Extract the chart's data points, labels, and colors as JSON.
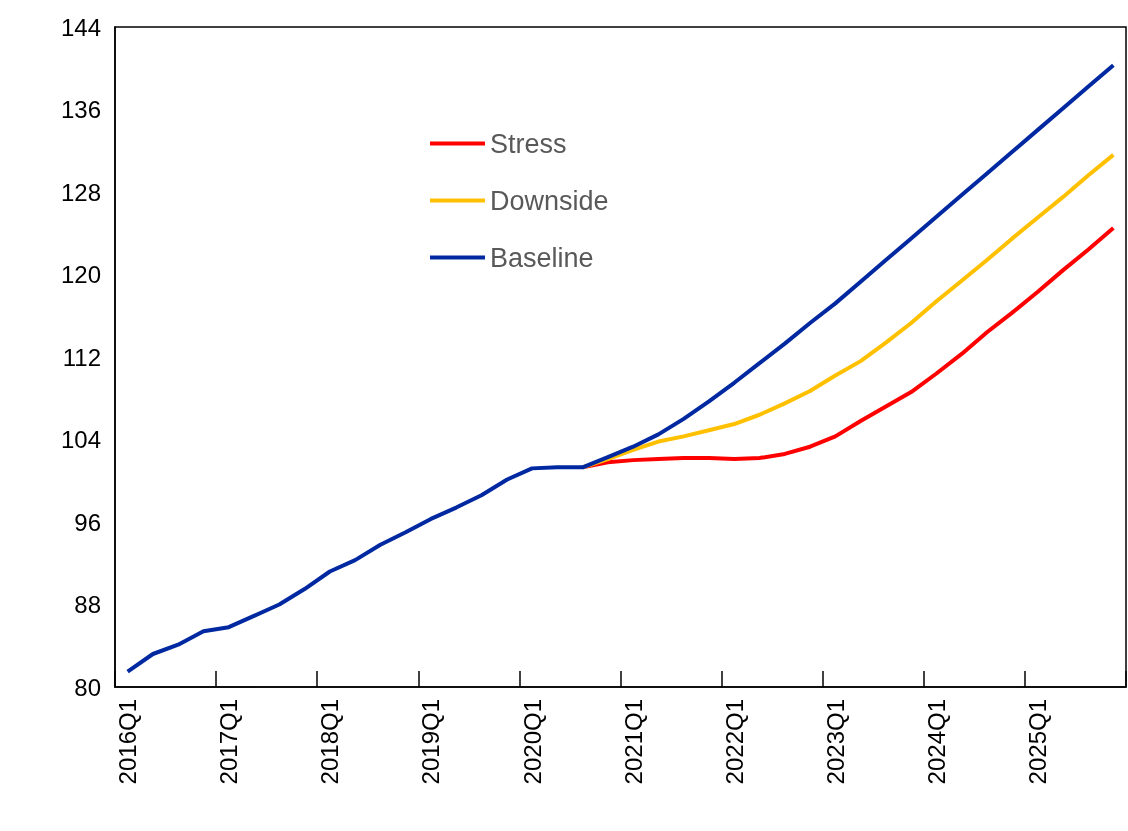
{
  "chart_data": {
    "type": "line",
    "categories": [
      "2016Q1",
      null,
      null,
      null,
      "2017Q1",
      null,
      null,
      null,
      "2018Q1",
      null,
      null,
      null,
      "2019Q1",
      null,
      null,
      null,
      "2020Q1",
      null,
      null,
      null,
      "2021Q1",
      null,
      null,
      null,
      "2022Q1",
      null,
      null,
      null,
      "2023Q1",
      null,
      null,
      null,
      "2024Q1",
      null,
      null,
      null,
      "2025Q1",
      null,
      null,
      null
    ],
    "series": [
      {
        "name": "Stress",
        "color": "#ff0000",
        "values": [
          null,
          null,
          null,
          null,
          null,
          null,
          null,
          null,
          null,
          null,
          null,
          null,
          null,
          null,
          null,
          null,
          null,
          null,
          101.3,
          101.8,
          102.0,
          102.1,
          102.2,
          102.2,
          102.1,
          102.2,
          102.6,
          103.3,
          104.3,
          105.8,
          107.2,
          108.6,
          110.4,
          112.3,
          114.4,
          116.3,
          118.3,
          120.4,
          122.4,
          124.5
        ]
      },
      {
        "name": "Downside",
        "color": "#ffc000",
        "values": [
          null,
          null,
          null,
          null,
          null,
          null,
          null,
          null,
          null,
          null,
          null,
          null,
          null,
          null,
          null,
          null,
          null,
          null,
          101.3,
          102.1,
          103.0,
          103.8,
          104.3,
          104.9,
          105.5,
          106.4,
          107.5,
          108.7,
          110.2,
          111.6,
          113.4,
          115.3,
          117.4,
          119.4,
          121.4,
          123.5,
          125.5,
          127.5,
          129.6,
          131.6
        ]
      },
      {
        "name": "Baseline",
        "color": "#0028a0",
        "values": [
          81.5,
          83.2,
          84.1,
          85.4,
          85.8,
          86.9,
          88.0,
          89.5,
          91.2,
          92.3,
          93.8,
          95.0,
          96.3,
          97.4,
          98.6,
          100.1,
          101.2,
          101.3,
          101.3,
          102.3,
          103.3,
          104.5,
          106.0,
          107.7,
          109.5,
          111.4,
          113.3,
          115.3,
          117.2,
          119.3,
          121.4,
          123.5,
          125.6,
          127.7,
          129.8,
          131.9,
          134.0,
          136.1,
          138.2,
          140.3
        ]
      }
    ],
    "ylim": [
      80,
      144
    ],
    "yticks": [
      80,
      88,
      96,
      104,
      112,
      120,
      128,
      136,
      144
    ],
    "grid": false,
    "legend": "top left",
    "marker": "none",
    "line_style": "solid"
  }
}
